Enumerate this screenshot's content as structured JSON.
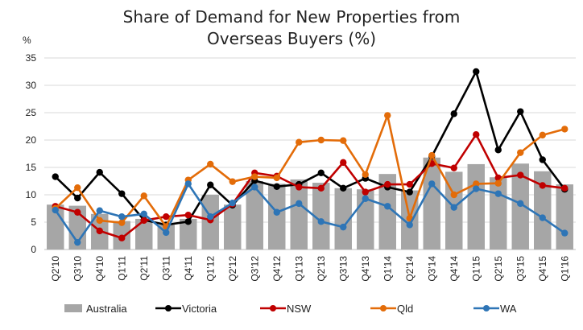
{
  "chart_data": {
    "type": "bar",
    "title_lines": [
      "Share of Demand for New Properties from",
      "Overseas Buyers (%)"
    ],
    "ylabel": "%",
    "ylim": [
      0,
      35
    ],
    "yticks": [
      0,
      5,
      10,
      15,
      20,
      25,
      30,
      35
    ],
    "grid": true,
    "legend_position": "bottom",
    "categories": [
      "Q2'10",
      "Q3'10",
      "Q4'10",
      "Q1'11",
      "Q2'11",
      "Q3'11",
      "Q4'11",
      "Q1'12",
      "Q2'12",
      "Q3'12",
      "Q4'12",
      "Q1'13",
      "Q2'13",
      "Q3'13",
      "Q4'13",
      "Q1'14",
      "Q2'14",
      "Q3'14",
      "Q4'14",
      "Q1'15",
      "Q2'15",
      "Q3'15",
      "Q4'15",
      "Q1'16"
    ],
    "bar_series": {
      "name": "Australia",
      "color": "#a6a6a6",
      "values": [
        8.2,
        8.0,
        6.5,
        5.2,
        5.6,
        4.5,
        5.6,
        10.0,
        8.2,
        12.5,
        12.0,
        12.8,
        12.2,
        11.2,
        11.0,
        13.8,
        10.8,
        16.8,
        14.2,
        15.6,
        13.2,
        15.7,
        14.3,
        11.9
      ]
    },
    "line_series": [
      {
        "name": "Victoria",
        "color": "#000000",
        "values": [
          13.3,
          9.4,
          14.1,
          10.2,
          5.4,
          4.5,
          5.1,
          11.8,
          8.1,
          12.6,
          11.5,
          11.9,
          14.0,
          11.2,
          13.0,
          11.4,
          10.5,
          17.0,
          24.8,
          32.5,
          18.2,
          25.2,
          16.4,
          11.0
        ]
      },
      {
        "name": "NSW",
        "color": "#c00000",
        "values": [
          7.9,
          6.8,
          3.4,
          2.1,
          5.3,
          6.0,
          6.3,
          5.4,
          8.3,
          14.0,
          13.4,
          11.4,
          11.2,
          15.9,
          10.5,
          11.9,
          11.9,
          15.7,
          14.9,
          21.0,
          13.1,
          13.6,
          11.7,
          11.2
        ]
      },
      {
        "name": "Qld",
        "color": "#e36c09",
        "values": [
          7.5,
          11.3,
          5.3,
          4.9,
          9.8,
          4.2,
          12.7,
          15.6,
          12.4,
          13.3,
          13.1,
          19.6,
          20.0,
          19.9,
          13.7,
          24.5,
          5.7,
          17.2,
          10.0,
          12.0,
          12.1,
          17.7,
          20.9,
          22.0
        ]
      },
      {
        "name": "WA",
        "color": "#2e75b6",
        "values": [
          7.2,
          1.3,
          7.1,
          6.0,
          6.5,
          3.1,
          12.0,
          6.0,
          8.5,
          11.4,
          6.8,
          8.4,
          5.1,
          4.1,
          9.3,
          7.9,
          4.5,
          12.0,
          7.7,
          11.1,
          10.2,
          8.4,
          5.8,
          3.0
        ]
      }
    ]
  }
}
